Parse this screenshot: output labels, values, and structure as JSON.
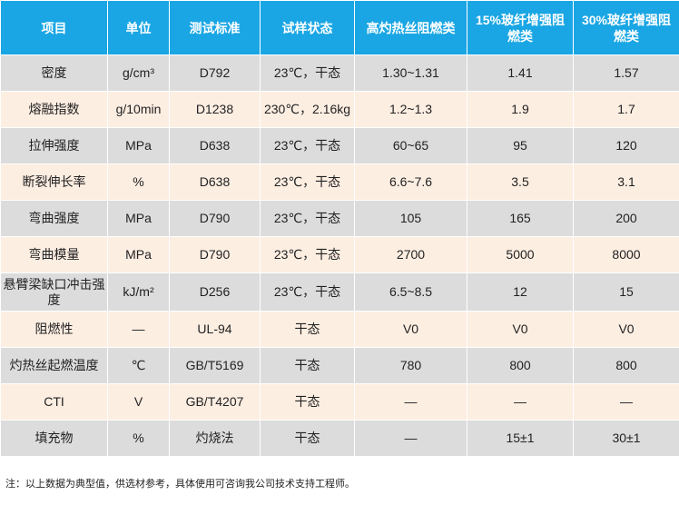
{
  "table": {
    "headers": [
      "项目",
      "单位",
      "测试标准",
      "试样状态",
      "高灼热丝阻燃类",
      "15%玻纤增强阻燃类",
      "30%玻纤增强阻燃类"
    ],
    "rows": [
      [
        "密度",
        "g/cm³",
        "D792",
        "23℃，干态",
        "1.30~1.31",
        "1.41",
        "1.57"
      ],
      [
        "熔融指数",
        "g/10min",
        "D1238",
        "230℃，2.16kg",
        "1.2~1.3",
        "1.9",
        "1.7"
      ],
      [
        "拉伸强度",
        "MPa",
        "D638",
        "23℃，干态",
        "60~65",
        "95",
        "120"
      ],
      [
        "断裂伸长率",
        "%",
        "D638",
        "23℃，干态",
        "6.6~7.6",
        "3.5",
        "3.1"
      ],
      [
        "弯曲强度",
        "MPa",
        "D790",
        "23℃，干态",
        "105",
        "165",
        "200"
      ],
      [
        "弯曲模量",
        "MPa",
        "D790",
        "23℃，干态",
        "2700",
        "5000",
        "8000"
      ],
      [
        "悬臂梁缺口冲击强度",
        "kJ/m²",
        "D256",
        "23℃，干态",
        "6.5~8.5",
        "12",
        "15"
      ],
      [
        "阻燃性",
        "—",
        "UL-94",
        "干态",
        "V0",
        "V0",
        "V0"
      ],
      [
        "灼热丝起燃温度",
        "℃",
        "GB/T5169",
        "干态",
        "780",
        "800",
        "800"
      ],
      [
        "CTI",
        "V",
        "GB/T4207",
        "干态",
        "—",
        "—",
        "—"
      ],
      [
        "填充物",
        "%",
        "灼烧法",
        "干态",
        "—",
        "15±1",
        "30±1"
      ]
    ]
  },
  "note": "注：以上数据为典型值，供选材参考，具体使用可咨询我公司技术支持工程师。",
  "colors": {
    "header_bg": "#1aa6e4",
    "row_gray": "#dcdcdc",
    "row_peach": "#fdeee2"
  }
}
